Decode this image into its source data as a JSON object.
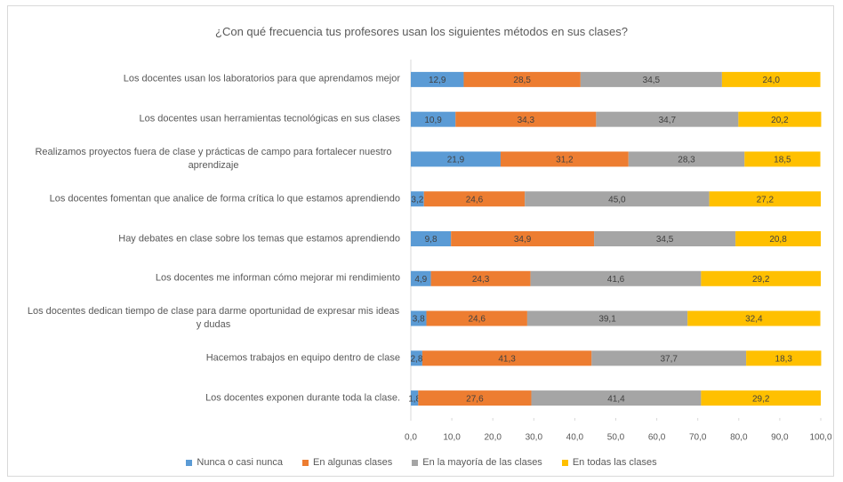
{
  "chart_data": {
    "type": "stacked-bar-horizontal",
    "title": "¿Con qué frecuencia tus profesores usan los siguientes métodos en sus clases?",
    "categories": [
      "Los docentes usan los laboratorios para que aprendamos mejor",
      "Los docentes usan herramientas tecnológicas en sus clases",
      "Realizamos proyectos fuera de clase y prácticas de campo para fortalecer nuestro aprendizaje",
      "Los docentes fomentan que analice de forma crítica lo que estamos aprendiendo",
      "Hay debates en clase sobre los temas que estamos aprendiendo",
      "Los docentes me informan cómo mejorar mi rendimiento",
      "Los docentes dedican tiempo de clase para darme oportunidad de expresar mis ideas y dudas",
      "Hacemos trabajos en equipo dentro de clase",
      "Los docentes exponen durante toda la clase."
    ],
    "series": [
      {
        "name": "Nunca o casi nunca",
        "color": "#5b9bd5",
        "values": [
          12.9,
          10.9,
          21.9,
          3.2,
          9.8,
          4.9,
          3.8,
          2.8,
          1.8
        ],
        "value_labels": [
          "12,9",
          "10,9",
          "21,9",
          "3,2",
          "9,8",
          "4,9",
          "3,8",
          "2,8",
          "1,8"
        ]
      },
      {
        "name": "En algunas clases",
        "color": "#ed7d31",
        "values": [
          28.5,
          34.3,
          31.2,
          24.6,
          34.9,
          24.3,
          24.6,
          41.3,
          27.6
        ],
        "value_labels": [
          "28,5",
          "34,3",
          "31,2",
          "24,6",
          "34,9",
          "24,3",
          "24,6",
          "41,3",
          "27,6"
        ]
      },
      {
        "name": "En la mayoría de las clases",
        "color": "#a5a5a5",
        "values": [
          34.5,
          34.7,
          28.3,
          45.0,
          34.5,
          41.6,
          39.1,
          37.7,
          41.4
        ],
        "value_labels": [
          "34,5",
          "34,7",
          "28,3",
          "45,0",
          "34,5",
          "41,6",
          "39,1",
          "37,7",
          "41,4"
        ]
      },
      {
        "name": "En todas las clases",
        "color": "#ffc000",
        "values": [
          24.0,
          20.2,
          18.5,
          27.2,
          20.8,
          29.2,
          32.4,
          18.3,
          29.2
        ],
        "value_labels": [
          "24,0",
          "20,2",
          "18,5",
          "27,2",
          "20,8",
          "29,2",
          "32,4",
          "18,3",
          "29,2"
        ]
      }
    ],
    "xlim": [
      0,
      100
    ],
    "xticks": [
      {
        "value": 0,
        "label": "0,0"
      },
      {
        "value": 10,
        "label": "10,0"
      },
      {
        "value": 20,
        "label": "20,0"
      },
      {
        "value": 30,
        "label": "30,0"
      },
      {
        "value": 40,
        "label": "40,0"
      },
      {
        "value": 50,
        "label": "50,0"
      },
      {
        "value": 60,
        "label": "60,0"
      },
      {
        "value": 70,
        "label": "70,0"
      },
      {
        "value": 80,
        "label": "80,0"
      },
      {
        "value": 90,
        "label": "90,0"
      },
      {
        "value": 100,
        "label": "100,0"
      }
    ],
    "legend": "bottom"
  }
}
